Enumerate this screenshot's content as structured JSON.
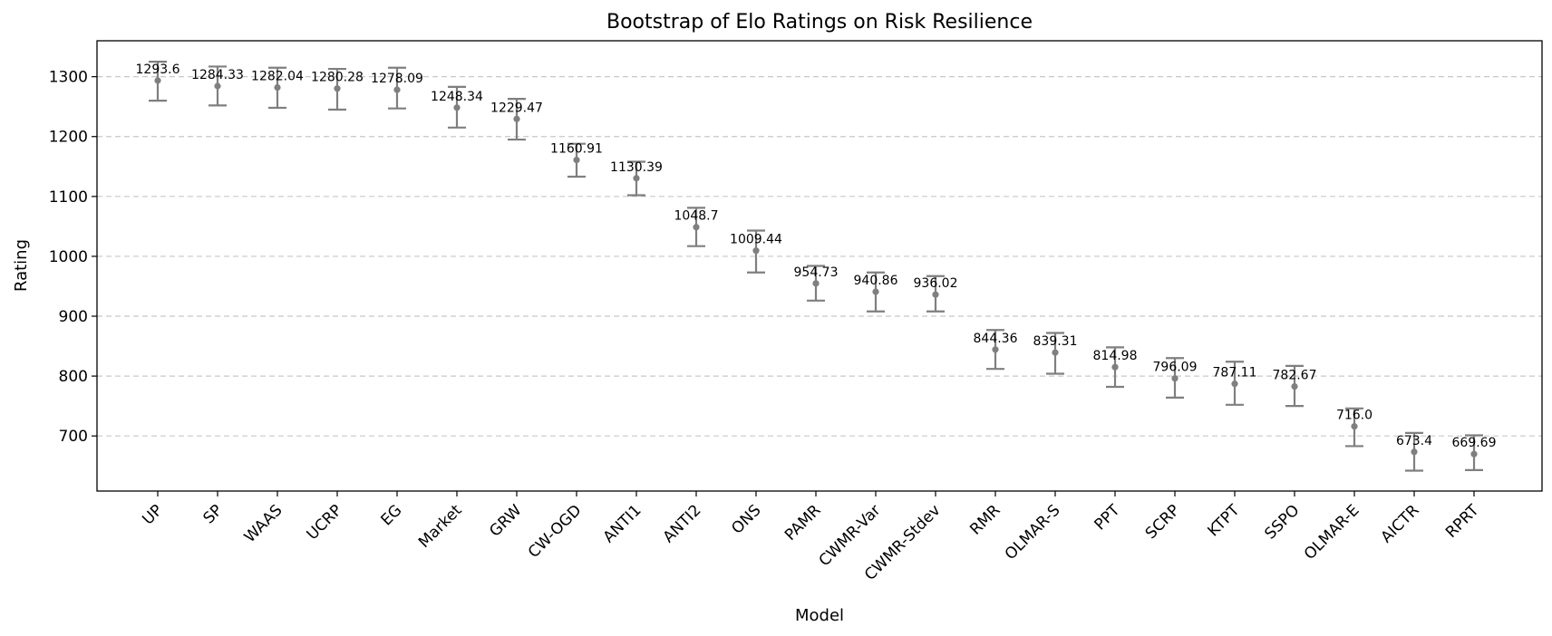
{
  "chart_data": {
    "type": "scatter",
    "title": "Bootstrap of Elo Ratings on Risk Resilience",
    "xlabel": "Model",
    "ylabel": "Rating",
    "ylim": [
      608,
      1360
    ],
    "yticks": [
      700,
      800,
      900,
      1000,
      1100,
      1200,
      1300
    ],
    "grid": "y-dashed",
    "marker_color": "#7f7f7f",
    "categories": [
      "UP",
      "SP",
      "WAAS",
      "UCRP",
      "EG",
      "Market",
      "GRW",
      "CW-OGD",
      "ANTI1",
      "ANTI2",
      "ONS",
      "PAMR",
      "CWMR-Var",
      "CWMR-Stdev",
      "RMR",
      "OLMAR-S",
      "PPT",
      "SCRP",
      "KTPT",
      "SSPO",
      "OLMAR-E",
      "AICTR",
      "RPRT"
    ],
    "values": [
      1293.6,
      1284.33,
      1282.04,
      1280.28,
      1278.09,
      1248.34,
      1229.47,
      1160.91,
      1130.39,
      1048.7,
      1009.44,
      954.73,
      940.86,
      936.02,
      844.36,
      839.31,
      814.98,
      796.09,
      787.11,
      782.67,
      716.0,
      673.4,
      669.69
    ],
    "value_labels": [
      "1293.6",
      "1284.33",
      "1282.04",
      "1280.28",
      "1278.09",
      "1248.34",
      "1229.47",
      "1160.91",
      "1130.39",
      "1048.7",
      "1009.44",
      "954.73",
      "940.86",
      "936.02",
      "844.36",
      "839.31",
      "814.98",
      "796.09",
      "787.11",
      "782.67",
      "716.0",
      "673.4",
      "669.69"
    ],
    "lower": [
      1260,
      1252,
      1248,
      1245,
      1247,
      1215,
      1195,
      1133,
      1102,
      1017,
      973,
      926,
      908,
      908,
      812,
      804,
      782,
      764,
      752,
      750,
      683,
      642,
      643
    ],
    "upper": [
      1325,
      1317,
      1315,
      1313,
      1315,
      1283,
      1263,
      1188,
      1158,
      1081,
      1043,
      984,
      973,
      967,
      877,
      872,
      848,
      830,
      824,
      817,
      746,
      705,
      701
    ]
  }
}
